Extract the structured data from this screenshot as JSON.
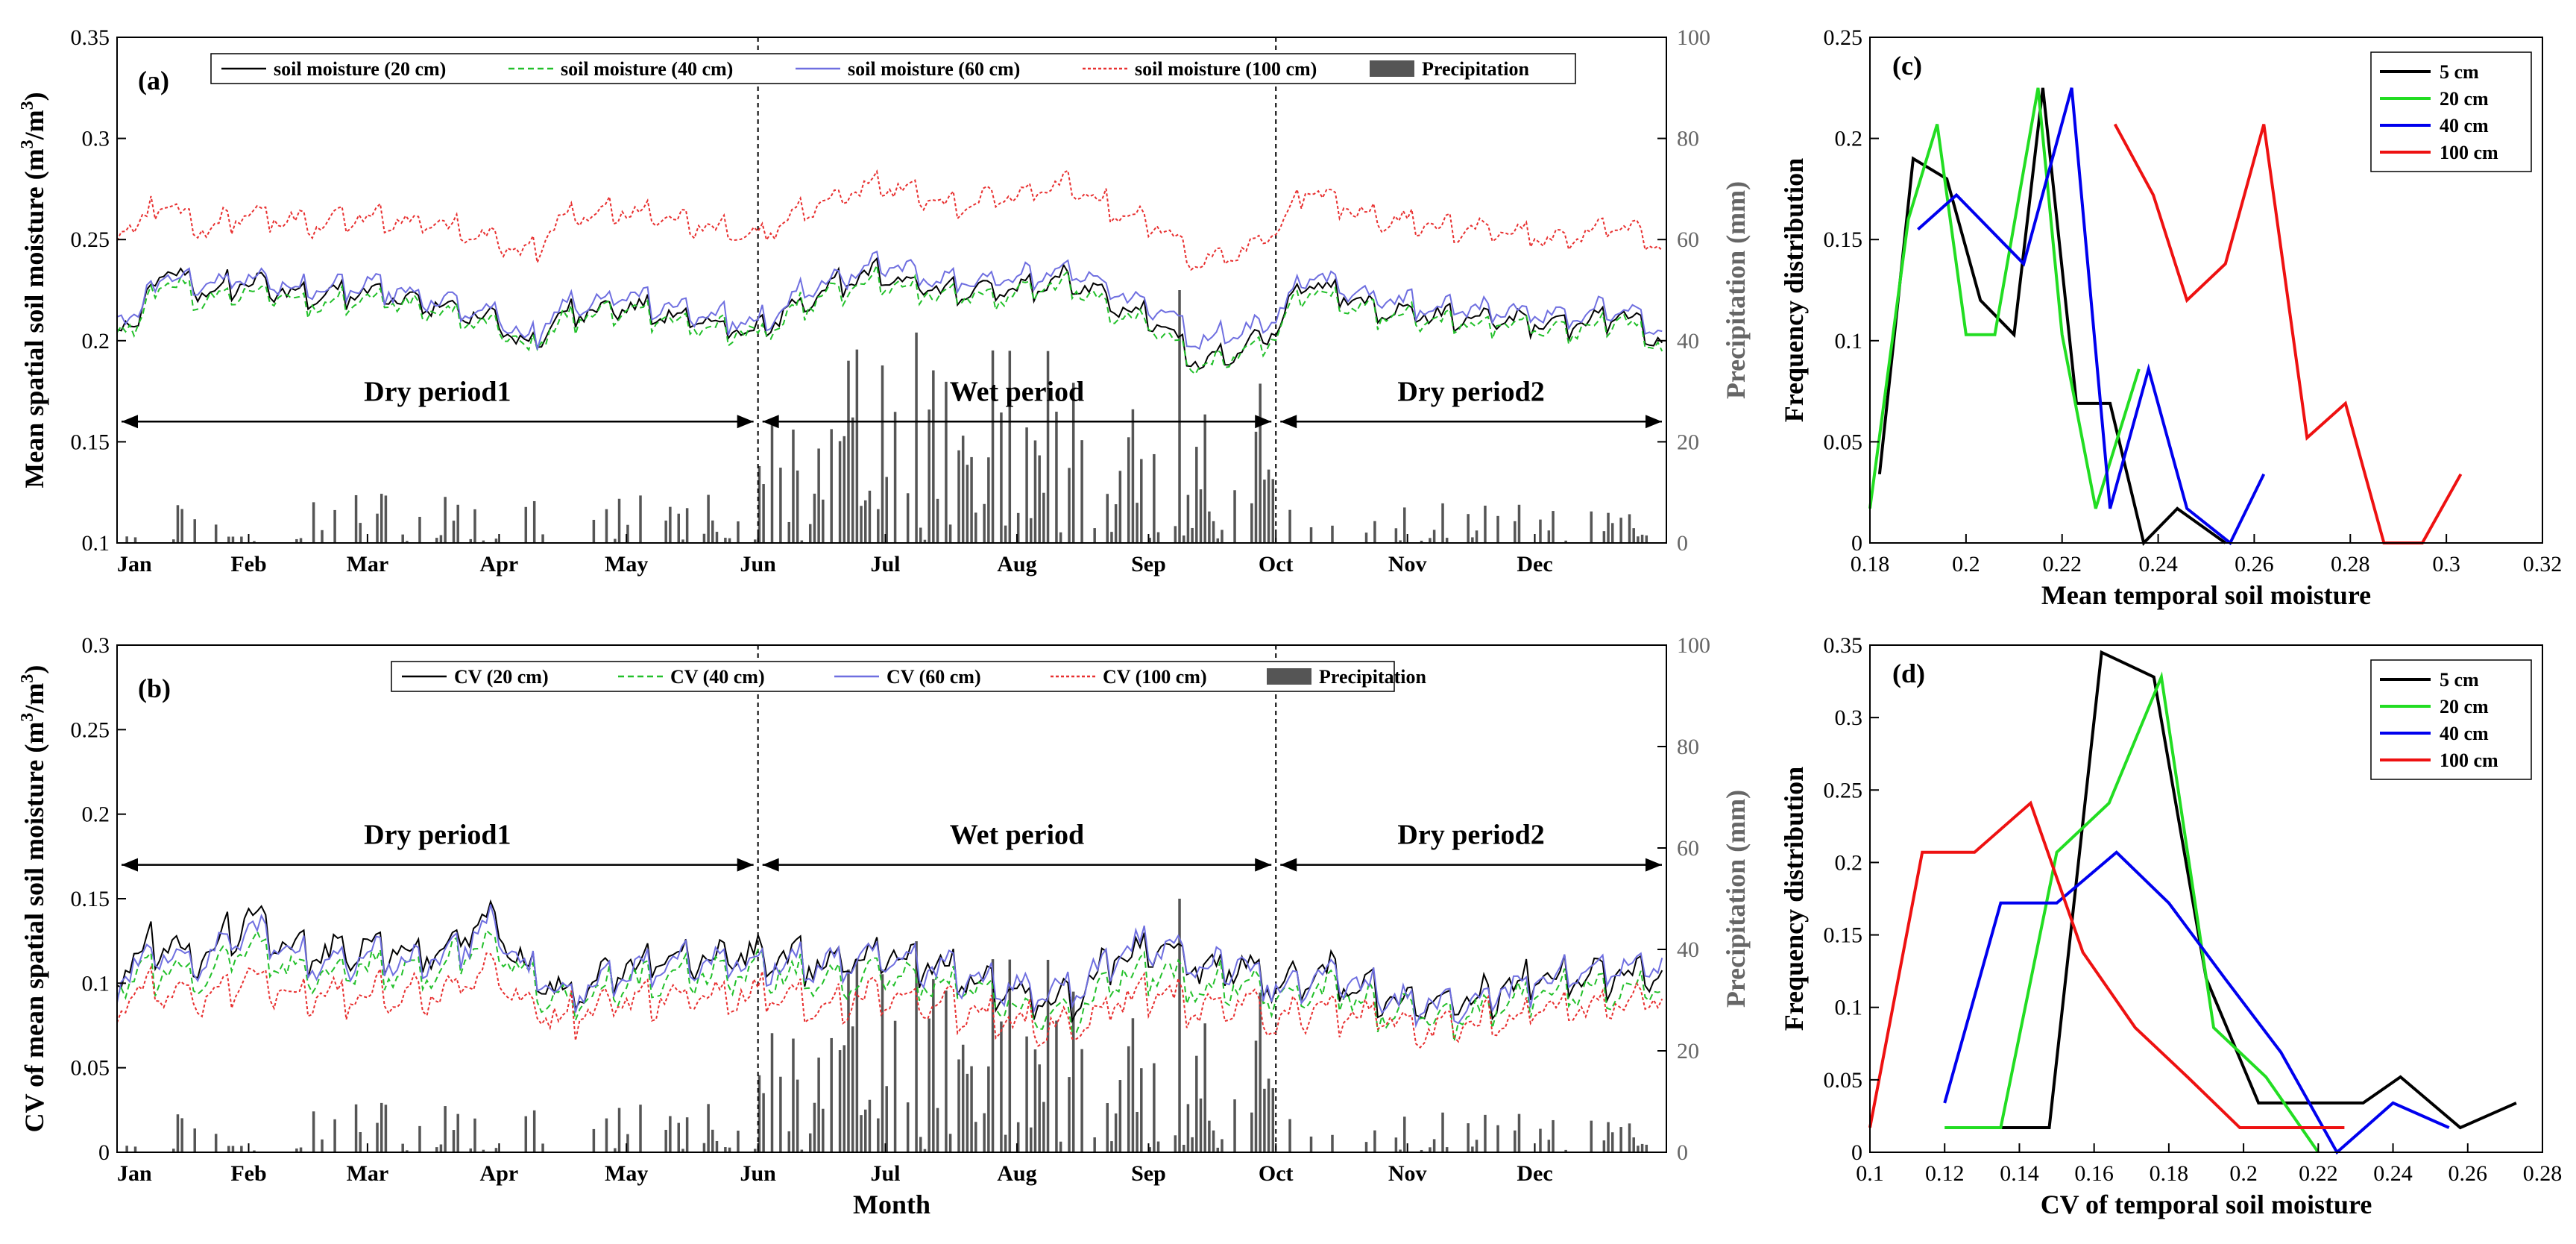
{
  "chart_data": [
    {
      "id": "a",
      "type": "line",
      "panel_label": "(a)",
      "ylabel": "Mean spatial soil moisture (m³/m³)",
      "ylabel_main": "Mean spatial soil moisture (m",
      "ylabel_sup": "3",
      "ylabel_mid": "/m",
      "ylabel_sup2": "3",
      "ylabel_end": ")",
      "y2label": "Precipitation (mm)",
      "xlabel": "",
      "ylim": [
        0.1,
        0.35
      ],
      "yticks": [
        "0.1",
        "0.15",
        "0.2",
        "0.25",
        "0.3",
        "0.35"
      ],
      "y2lim": [
        0,
        100
      ],
      "y2ticks": [
        "0",
        "20",
        "40",
        "60",
        "80",
        "100"
      ],
      "months": [
        "Jan",
        "Feb",
        "Mar",
        "Apr",
        "May",
        "Jun",
        "Jul",
        "Aug",
        "Sep",
        "Oct",
        "Nov",
        "Dec"
      ],
      "period_arrow_y": 0.16,
      "periods": [
        {
          "label": "Dry period1",
          "start_day": 0,
          "end_day": 151
        },
        {
          "label": "Wet period",
          "start_day": 151,
          "end_day": 273
        },
        {
          "label": "Dry period2",
          "start_day": 273,
          "end_day": 365
        }
      ],
      "divider_days": [
        151,
        273
      ],
      "legend": [
        "soil moisture (20 cm)",
        "soil moisture (40 cm)",
        "soil moisture (60 cm)",
        "soil moisture (100 cm)",
        "Precipitation"
      ],
      "series_keypoints": [
        {
          "name": "soil moisture (20 cm)",
          "color": "#000000",
          "dash": "none",
          "x": [
            0,
            5,
            10,
            20,
            31,
            45,
            59,
            75,
            90,
            97,
            105,
            120,
            135,
            151,
            165,
            180,
            195,
            210,
            225,
            235,
            245,
            255,
            265,
            273,
            280,
            295,
            310,
            325,
            340,
            355,
            364
          ],
          "y": [
            0.213,
            0.207,
            0.238,
            0.225,
            0.23,
            0.222,
            0.225,
            0.218,
            0.21,
            0.196,
            0.214,
            0.218,
            0.211,
            0.205,
            0.225,
            0.234,
            0.225,
            0.226,
            0.232,
            0.218,
            0.21,
            0.188,
            0.196,
            0.207,
            0.23,
            0.218,
            0.213,
            0.212,
            0.208,
            0.214,
            0.2
          ]
        },
        {
          "name": "soil moisture (40 cm)",
          "color": "#22c02a",
          "dash": "8,5",
          "x": [
            0,
            5,
            10,
            20,
            31,
            45,
            59,
            75,
            90,
            97,
            105,
            120,
            135,
            151,
            165,
            180,
            195,
            210,
            225,
            235,
            245,
            255,
            265,
            273,
            280,
            295,
            310,
            325,
            340,
            355,
            364
          ],
          "y": [
            0.21,
            0.205,
            0.232,
            0.221,
            0.226,
            0.219,
            0.222,
            0.215,
            0.208,
            0.195,
            0.211,
            0.215,
            0.208,
            0.203,
            0.222,
            0.231,
            0.222,
            0.223,
            0.229,
            0.215,
            0.207,
            0.187,
            0.194,
            0.204,
            0.226,
            0.215,
            0.21,
            0.209,
            0.205,
            0.211,
            0.198
          ]
        },
        {
          "name": "soil moisture (60 cm)",
          "color": "#6f6fe0",
          "dash": "none",
          "x": [
            0,
            5,
            10,
            20,
            31,
            45,
            59,
            75,
            90,
            97,
            105,
            120,
            135,
            151,
            165,
            180,
            195,
            210,
            225,
            235,
            245,
            255,
            265,
            273,
            280,
            295,
            310,
            325,
            340,
            355,
            364
          ],
          "y": [
            0.216,
            0.212,
            0.235,
            0.228,
            0.232,
            0.225,
            0.228,
            0.221,
            0.214,
            0.2,
            0.218,
            0.222,
            0.215,
            0.209,
            0.229,
            0.238,
            0.23,
            0.231,
            0.237,
            0.224,
            0.217,
            0.2,
            0.205,
            0.212,
            0.233,
            0.222,
            0.217,
            0.216,
            0.212,
            0.218,
            0.204
          ]
        },
        {
          "name": "soil moisture (100 cm)",
          "color": "#e83030",
          "dash": "4,3",
          "x": [
            0,
            5,
            10,
            20,
            31,
            45,
            59,
            75,
            90,
            97,
            105,
            120,
            135,
            151,
            165,
            180,
            195,
            210,
            225,
            235,
            245,
            255,
            265,
            273,
            280,
            295,
            310,
            325,
            340,
            355,
            364
          ],
          "y": [
            0.258,
            0.255,
            0.27,
            0.255,
            0.265,
            0.258,
            0.262,
            0.258,
            0.25,
            0.242,
            0.262,
            0.265,
            0.258,
            0.252,
            0.268,
            0.278,
            0.268,
            0.272,
            0.278,
            0.265,
            0.258,
            0.238,
            0.245,
            0.255,
            0.275,
            0.262,
            0.257,
            0.255,
            0.25,
            0.258,
            0.246
          ]
        }
      ]
    },
    {
      "id": "b",
      "type": "line",
      "panel_label": "(b)",
      "ylabel": "CV of mean spatial soil moisture (m³/m³)",
      "ylabel_main": "CV of mean spatial soil moisture (m",
      "ylabel_sup": "3",
      "ylabel_mid": "/m",
      "ylabel_sup2": "3",
      "ylabel_end": ")",
      "y2label": "Precipitation (mm)",
      "xlabel": "Month",
      "ylim": [
        0,
        0.3
      ],
      "yticks": [
        "0",
        "0.05",
        "0.1",
        "0.15",
        "0.2",
        "0.25",
        "0.3"
      ],
      "y2lim": [
        0,
        100
      ],
      "y2ticks": [
        "0",
        "20",
        "40",
        "60",
        "80",
        "100"
      ],
      "months": [
        "Jan",
        "Feb",
        "Mar",
        "Apr",
        "May",
        "Jun",
        "Jul",
        "Aug",
        "Sep",
        "Oct",
        "Nov",
        "Dec"
      ],
      "period_arrow_y": 0.17,
      "periods": [
        {
          "label": "Dry period1",
          "start_day": 0,
          "end_day": 151
        },
        {
          "label": "Wet period",
          "start_day": 151,
          "end_day": 273
        },
        {
          "label": "Dry period2",
          "start_day": 273,
          "end_day": 365
        }
      ],
      "divider_days": [
        151,
        273
      ],
      "legend": [
        "CV (20 cm)",
        "CV (40 cm)",
        "CV (60 cm)",
        "CV (100 cm)",
        "Precipitation"
      ],
      "series_keypoints": [
        {
          "name": "CV (20 cm)",
          "color": "#000000",
          "dash": "none",
          "x": [
            0,
            10,
            20,
            31,
            45,
            59,
            75,
            88,
            97,
            105,
            120,
            135,
            151,
            165,
            180,
            195,
            210,
            225,
            235,
            245,
            255,
            265,
            273,
            285,
            300,
            315,
            330,
            345,
            364
          ],
          "y": [
            0.11,
            0.125,
            0.115,
            0.14,
            0.118,
            0.122,
            0.118,
            0.14,
            0.108,
            0.095,
            0.11,
            0.115,
            0.118,
            0.112,
            0.12,
            0.11,
            0.095,
            0.09,
            0.118,
            0.122,
            0.108,
            0.112,
            0.098,
            0.108,
            0.092,
            0.088,
            0.1,
            0.105,
            0.108
          ]
        },
        {
          "name": "CV (40 cm)",
          "color": "#22c02a",
          "dash": "8,5",
          "x": [
            0,
            10,
            20,
            31,
            45,
            59,
            75,
            88,
            97,
            105,
            120,
            135,
            151,
            165,
            180,
            195,
            210,
            225,
            235,
            245,
            255,
            265,
            273,
            285,
            300,
            315,
            330,
            345,
            364
          ],
          "y": [
            0.1,
            0.11,
            0.105,
            0.125,
            0.105,
            0.11,
            0.108,
            0.125,
            0.1,
            0.09,
            0.1,
            0.105,
            0.108,
            0.102,
            0.108,
            0.1,
            0.088,
            0.082,
            0.105,
            0.11,
            0.098,
            0.102,
            0.09,
            0.098,
            0.085,
            0.08,
            0.092,
            0.098,
            0.1
          ]
        },
        {
          "name": "CV (60 cm)",
          "color": "#6f6fe0",
          "dash": "none",
          "x": [
            0,
            10,
            20,
            31,
            45,
            59,
            75,
            88,
            97,
            105,
            120,
            135,
            151,
            165,
            180,
            195,
            210,
            225,
            235,
            245,
            255,
            265,
            273,
            285,
            300,
            315,
            330,
            345,
            364
          ],
          "y": [
            0.105,
            0.118,
            0.112,
            0.135,
            0.112,
            0.116,
            0.114,
            0.135,
            0.106,
            0.095,
            0.108,
            0.112,
            0.115,
            0.11,
            0.118,
            0.108,
            0.098,
            0.095,
            0.12,
            0.125,
            0.11,
            0.112,
            0.098,
            0.106,
            0.092,
            0.088,
            0.1,
            0.108,
            0.112
          ]
        },
        {
          "name": "CV (100 cm)",
          "color": "#e83030",
          "dash": "4,3",
          "x": [
            0,
            10,
            20,
            31,
            45,
            59,
            75,
            88,
            97,
            105,
            120,
            135,
            151,
            165,
            180,
            195,
            210,
            225,
            235,
            245,
            255,
            265,
            273,
            285,
            300,
            315,
            330,
            345,
            364
          ],
          "y": [
            0.09,
            0.098,
            0.092,
            0.105,
            0.092,
            0.096,
            0.094,
            0.11,
            0.088,
            0.08,
            0.09,
            0.094,
            0.095,
            0.088,
            0.095,
            0.088,
            0.078,
            0.074,
            0.09,
            0.096,
            0.086,
            0.09,
            0.08,
            0.086,
            0.078,
            0.074,
            0.082,
            0.086,
            0.092
          ]
        }
      ]
    },
    {
      "id": "c",
      "type": "line",
      "panel_label": "(c)",
      "xlabel": "Mean temporal soil moisture",
      "ylabel": "Frequency distribution",
      "xlim": [
        0.18,
        0.32
      ],
      "ylim": [
        0,
        0.25
      ],
      "xticks": [
        "0.18",
        "0.2",
        "0.22",
        "0.24",
        "0.26",
        "0.28",
        "0.3",
        "0.32"
      ],
      "yticks": [
        "0",
        "0.05",
        "0.1",
        "0.15",
        "0.2",
        "0.25"
      ],
      "legend_placement": "top-right",
      "series": [
        {
          "name": "5 cm",
          "color": "#000000",
          "x": [
            0.182,
            0.189,
            0.196,
            0.203,
            0.21,
            0.216,
            0.223,
            0.23,
            0.237,
            0.244,
            0.254
          ],
          "y": [
            0.034,
            0.19,
            0.18,
            0.12,
            0.103,
            0.225,
            0.069,
            0.069,
            0.0,
            0.017,
            0.0
          ]
        },
        {
          "name": "20 cm",
          "color": "#22dd22",
          "x": [
            0.18,
            0.188,
            0.194,
            0.2,
            0.206,
            0.215,
            0.22,
            0.227,
            0.236
          ],
          "y": [
            0.017,
            0.16,
            0.207,
            0.103,
            0.103,
            0.225,
            0.103,
            0.017,
            0.086
          ]
        },
        {
          "name": "40 cm",
          "color": "#0000ee",
          "x": [
            0.19,
            0.198,
            0.212,
            0.222,
            0.23,
            0.238,
            0.246,
            0.255,
            0.262
          ],
          "y": [
            0.155,
            0.172,
            0.138,
            0.225,
            0.017,
            0.086,
            0.017,
            0.0,
            0.034
          ]
        },
        {
          "name": "100 cm",
          "color": "#ee1111",
          "x": [
            0.231,
            0.239,
            0.246,
            0.254,
            0.262,
            0.271,
            0.279,
            0.287,
            0.295,
            0.303
          ],
          "y": [
            0.207,
            0.172,
            0.12,
            0.138,
            0.207,
            0.052,
            0.069,
            0.0,
            0.0,
            0.034
          ]
        }
      ]
    },
    {
      "id": "d",
      "type": "line",
      "panel_label": "(d)",
      "xlabel": "CV of temporal soil moisture",
      "ylabel": "Frequency distribution",
      "xlim": [
        0.1,
        0.28
      ],
      "ylim": [
        0,
        0.35
      ],
      "xticks": [
        "0.1",
        "0.12",
        "0.14",
        "0.16",
        "0.18",
        "0.2",
        "0.22",
        "0.24",
        "0.26",
        "0.28"
      ],
      "yticks": [
        "0",
        "0.05",
        "0.1",
        "0.15",
        "0.2",
        "0.25",
        "0.3",
        "0.35"
      ],
      "legend_placement": "top-right",
      "series": [
        {
          "name": "5 cm",
          "color": "#000000",
          "x": [
            0.135,
            0.148,
            0.162,
            0.176,
            0.19,
            0.204,
            0.218,
            0.232,
            0.242,
            0.258,
            0.273
          ],
          "y": [
            0.017,
            0.017,
            0.345,
            0.328,
            0.12,
            0.034,
            0.034,
            0.034,
            0.052,
            0.017,
            0.034
          ]
        },
        {
          "name": "20 cm",
          "color": "#22dd22",
          "x": [
            0.12,
            0.135,
            0.15,
            0.164,
            0.178,
            0.192,
            0.206,
            0.22
          ],
          "y": [
            0.017,
            0.017,
            0.207,
            0.241,
            0.328,
            0.086,
            0.052,
            0.0
          ]
        },
        {
          "name": "40 cm",
          "color": "#0000ee",
          "x": [
            0.12,
            0.135,
            0.15,
            0.166,
            0.18,
            0.195,
            0.21,
            0.225,
            0.24,
            0.255
          ],
          "y": [
            0.034,
            0.172,
            0.172,
            0.207,
            0.172,
            0.12,
            0.069,
            0.0,
            0.034,
            0.017
          ]
        },
        {
          "name": "100 cm",
          "color": "#ee1111",
          "x": [
            0.1,
            0.114,
            0.128,
            0.143,
            0.157,
            0.171,
            0.185,
            0.199,
            0.213,
            0.227
          ],
          "y": [
            0.017,
            0.207,
            0.207,
            0.241,
            0.138,
            0.086,
            0.052,
            0.017,
            0.017,
            0.017
          ]
        }
      ]
    }
  ]
}
